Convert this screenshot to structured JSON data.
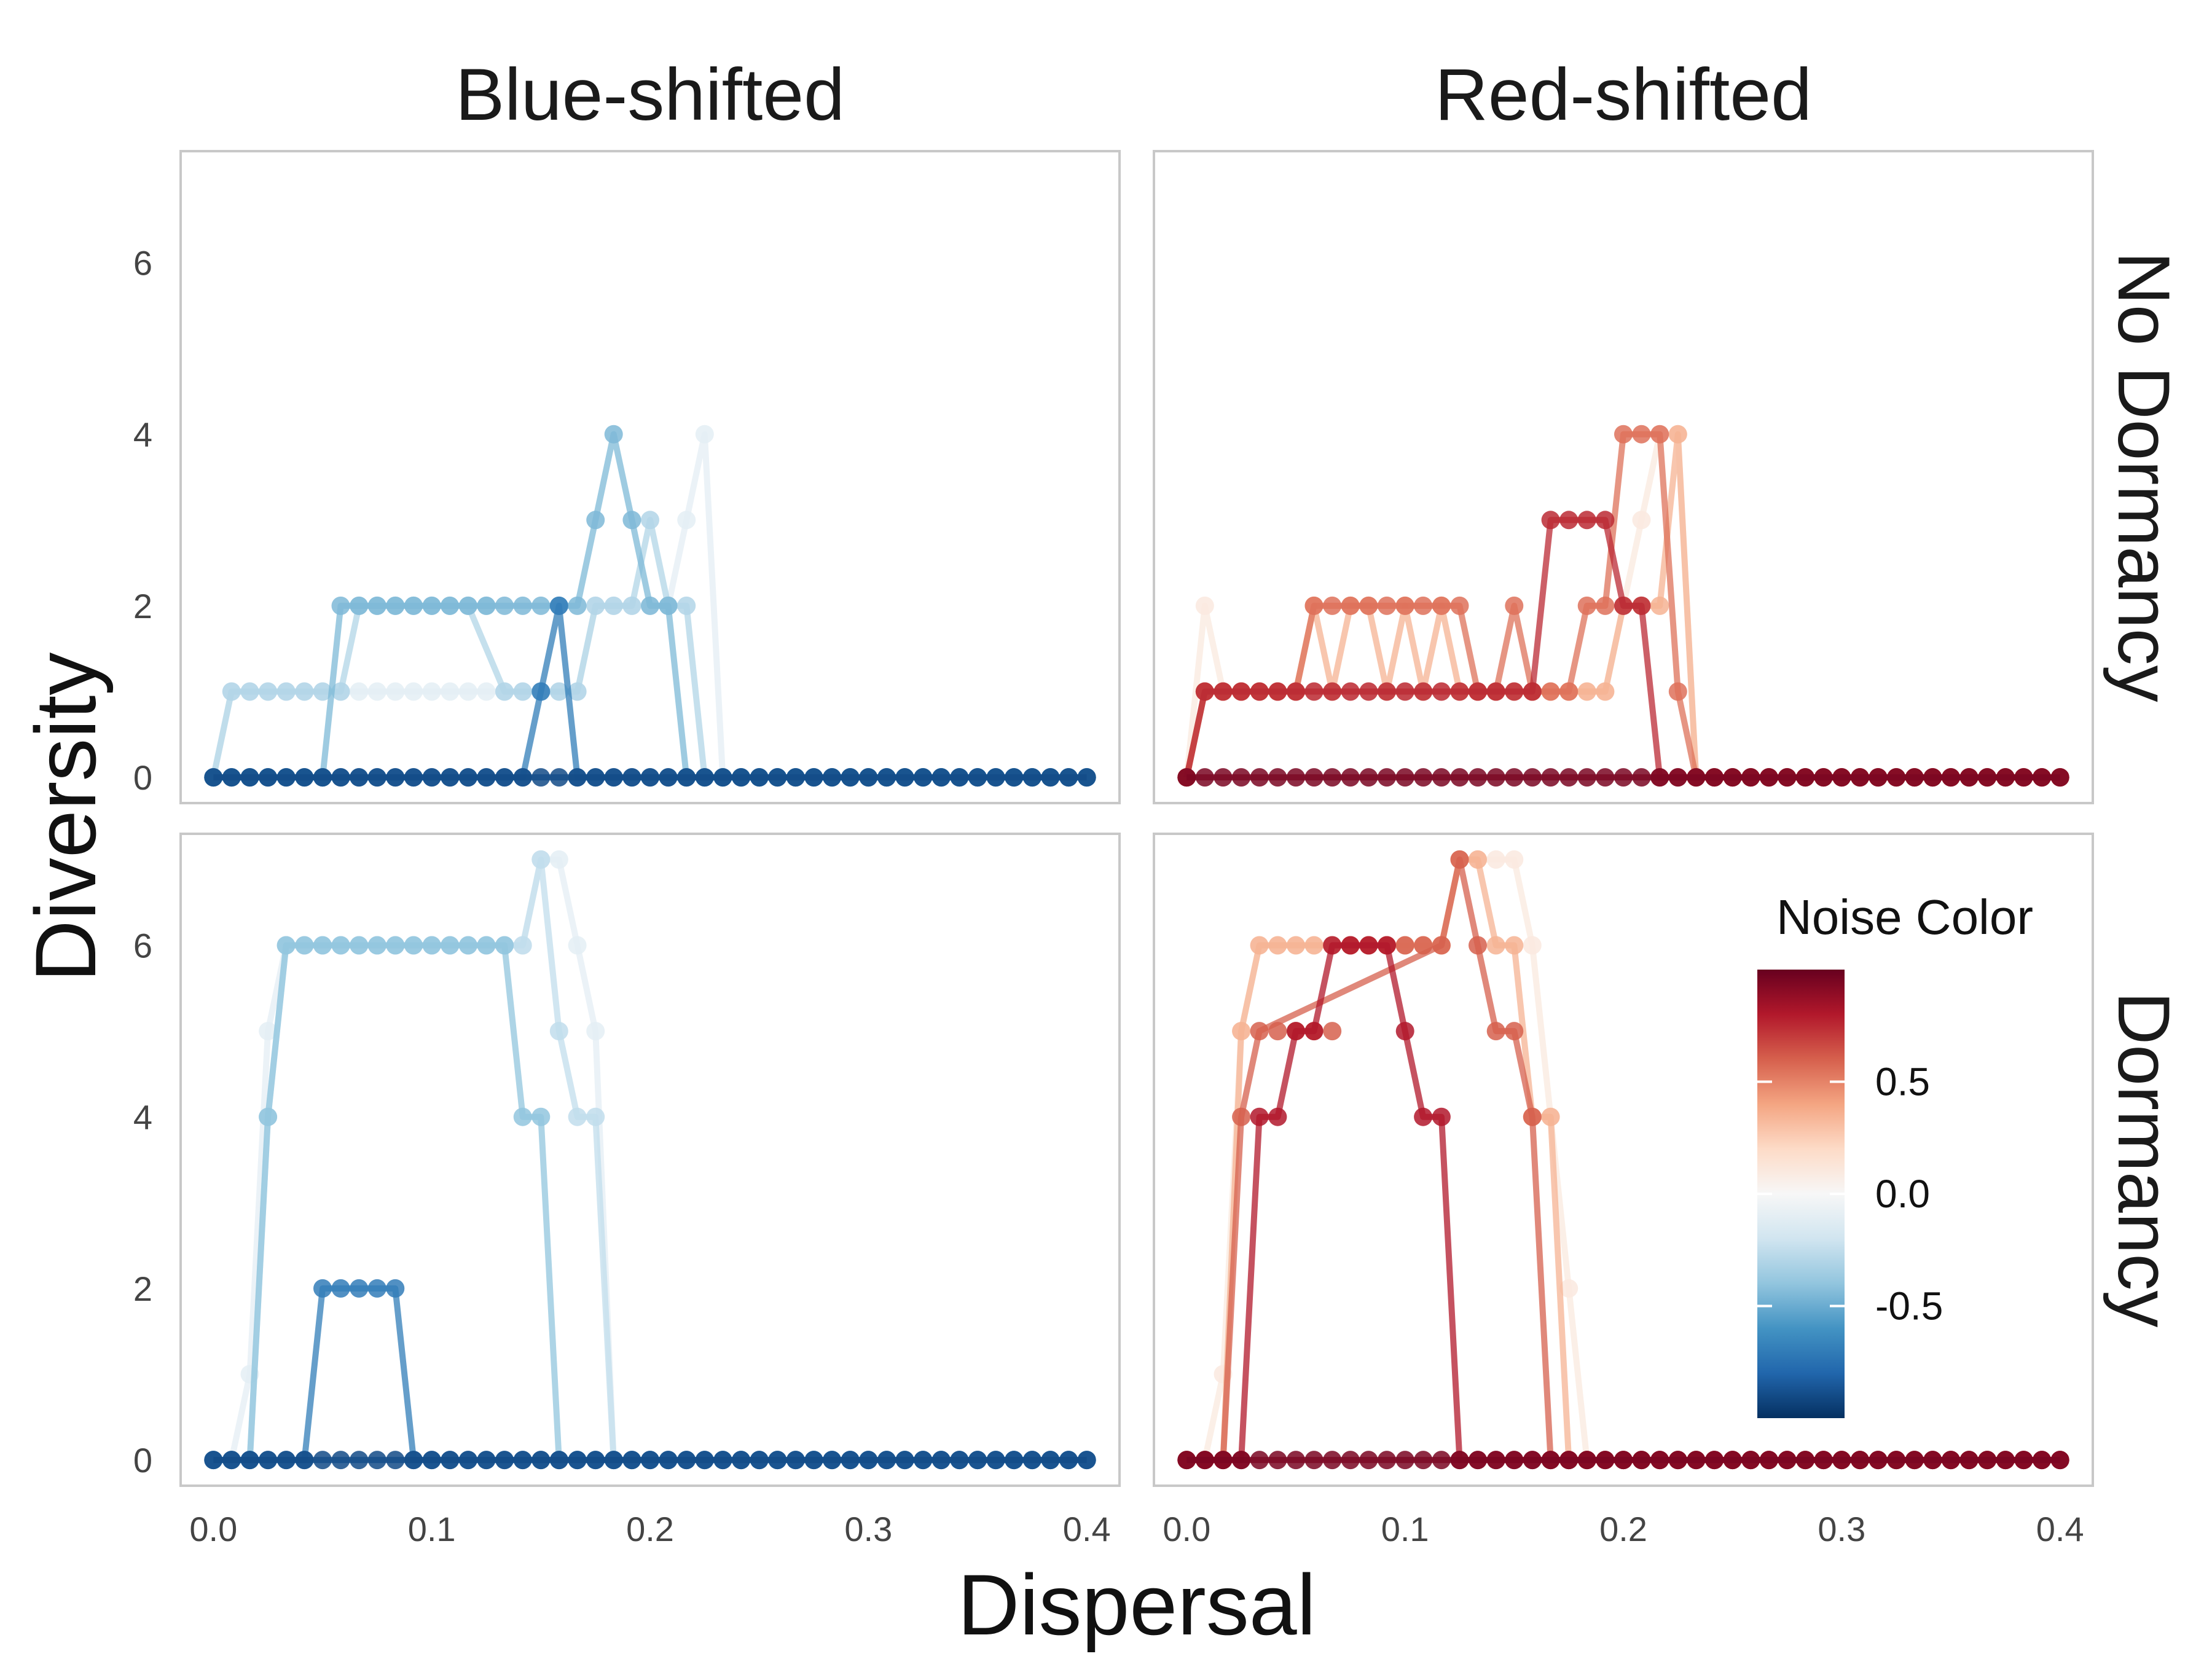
{
  "chart_data": {
    "type": "line",
    "xlabel": "Dispersal",
    "ylabel": "Diversity",
    "xlim": [
      -0.015,
      0.415
    ],
    "ylim": [
      -0.3,
      7.3
    ],
    "x_ticks": [
      "0.0",
      "0.1",
      "0.2",
      "0.3",
      "0.4"
    ],
    "x_tick_values": [
      0,
      0.1,
      0.2,
      0.3,
      0.4
    ],
    "y_ticks": [
      "0",
      "2",
      "4",
      "6"
    ],
    "y_tick_values": [
      0,
      2,
      4,
      6
    ],
    "grid": false,
    "column_labels": [
      "Blue-shifted",
      "Red-shifted"
    ],
    "row_labels": [
      "No Dormancy",
      "Dormancy"
    ],
    "legend": {
      "title": "Noise Color",
      "type": "colorbar",
      "placement": "inside bottom-right panel, right side",
      "range": [
        -1,
        1
      ],
      "ticks": [
        "0.5",
        "0.0",
        "-0.5"
      ],
      "tick_values": [
        0.5,
        0.0,
        -0.5
      ],
      "palette": [
        "#053061",
        "#2166ac",
        "#4393c3",
        "#92c5de",
        "#d1e5f0",
        "#f7f7f7",
        "#fddbc7",
        "#f4a582",
        "#d6604d",
        "#b2182b",
        "#67001f"
      ]
    },
    "panels": [
      {
        "column": "Blue-shifted",
        "row": "No Dormancy",
        "series": [
          {
            "noise_color": -0.1,
            "x": [
              0,
              0.0083,
              0.1667,
              0.175,
              0.1833,
              0.1917,
              0.2,
              0.2083,
              0.2167,
              0.225,
              0.2333,
              0.4
            ],
            "y": [
              0,
              1,
              1,
              2,
              2,
              2,
              2,
              2,
              3,
              4,
              0,
              0
            ]
          },
          {
            "noise_color": -0.3,
            "x": [
              0,
              0.0083,
              0.0583,
              0.0667,
              0.0917,
              0.1,
              0.1083,
              0.1167,
              0.1333,
              0.1417,
              0.1667,
              0.175,
              0.1833,
              0.1917,
              0.2,
              0.2083,
              0.2167,
              0.225,
              0.4
            ],
            "y": [
              0,
              1,
              1,
              2,
              2,
              2,
              2,
              2,
              1,
              1,
              1,
              2,
              2,
              2,
              3,
              2,
              2,
              0,
              0
            ]
          },
          {
            "noise_color": -0.45,
            "x": [
              0,
              0.0083,
              0.05,
              0.0583,
              0.1,
              0.1083,
              0.1167,
              0.125,
              0.1333,
              0.1417,
              0.15,
              0.1583,
              0.1667,
              0.175,
              0.1833,
              0.1917,
              0.2,
              0.2083,
              0.2167,
              0.4
            ],
            "y": [
              0,
              0,
              0,
              2,
              2,
              2,
              2,
              2,
              2,
              2,
              2,
              2,
              2,
              3,
              4,
              3,
              2,
              2,
              0,
              0
            ]
          },
          {
            "noise_color": -0.7,
            "x": [
              0,
              0.1417,
              0.15,
              0.1583,
              0.1667,
              0.4
            ],
            "y": [
              0,
              0,
              1,
              2,
              0,
              0
            ]
          },
          {
            "noise_color": -0.9,
            "x": [
              0,
              0.4
            ],
            "y": [
              0,
              0
            ]
          }
        ]
      },
      {
        "column": "Red-shifted",
        "row": "No Dormancy",
        "series": [
          {
            "noise_color": 0.1,
            "x": [
              0,
              0.0083,
              0.0167,
              0.025,
              0.1833,
              0.1917,
              0.2,
              0.2083,
              0.2167,
              0.225,
              0.2333,
              0.4
            ],
            "y": [
              0,
              2,
              1,
              1,
              1,
              1,
              2,
              3,
              4,
              4,
              0,
              0
            ]
          },
          {
            "noise_color": 0.35,
            "x": [
              0,
              0.0083,
              0.05,
              0.0583,
              0.0667,
              0.075,
              0.0833,
              0.0917,
              0.1,
              0.1083,
              0.1167,
              0.125,
              0.1333,
              0.1417,
              0.1917,
              0.2,
              0.2083,
              0.2167,
              0.225,
              0.2333,
              0.4
            ],
            "y": [
              0,
              1,
              1,
              2,
              1,
              2,
              2,
              1,
              2,
              1,
              2,
              1,
              1,
              1,
              1,
              2,
              2,
              2,
              4,
              0,
              0
            ]
          },
          {
            "noise_color": 0.55,
            "x": [
              0,
              0.0083,
              0.05,
              0.0583,
              0.0667,
              0.075,
              0.0833,
              0.0917,
              0.1,
              0.1083,
              0.1167,
              0.125,
              0.1333,
              0.1417,
              0.15,
              0.1583,
              0.1667,
              0.175,
              0.1833,
              0.1917,
              0.2,
              0.2083,
              0.2167,
              0.225,
              0.2333,
              0.4
            ],
            "y": [
              0,
              1,
              1,
              2,
              2,
              2,
              2,
              2,
              2,
              2,
              2,
              2,
              1,
              1,
              2,
              1,
              1,
              1,
              2,
              2,
              4,
              4,
              4,
              1,
              0,
              0
            ]
          },
          {
            "noise_color": 0.75,
            "x": [
              0,
              0.0083,
              0.1583,
              0.1667,
              0.175,
              0.1833,
              0.1917,
              0.2,
              0.2083,
              0.2167,
              0.4
            ],
            "y": [
              0,
              1,
              1,
              3,
              3,
              3,
              3,
              2,
              2,
              0,
              0
            ]
          },
          {
            "noise_color": 0.95,
            "x": [
              0,
              0.4
            ],
            "y": [
              0,
              0
            ]
          }
        ]
      },
      {
        "column": "Blue-shifted",
        "row": "Dormancy",
        "series": [
          {
            "noise_color": -0.1,
            "x": [
              0,
              0.0083,
              0.0167,
              0.025,
              0.0333,
              0.1417,
              0.15,
              0.1583,
              0.1667,
              0.175,
              0.1833,
              0.4
            ],
            "y": [
              0,
              0,
              1,
              5,
              6,
              6,
              7,
              7,
              6,
              5,
              0,
              0
            ]
          },
          {
            "noise_color": -0.25,
            "x": [
              0,
              0.0167,
              0.025,
              0.0333,
              0.1417,
              0.15,
              0.1583,
              0.1667,
              0.175,
              0.1833,
              0.4
            ],
            "y": [
              0,
              0,
              4,
              6,
              6,
              7,
              5,
              4,
              4,
              0,
              0
            ]
          },
          {
            "noise_color": -0.4,
            "x": [
              0,
              0.0167,
              0.025,
              0.0333,
              0.1333,
              0.1417,
              0.15,
              0.1583,
              0.4
            ],
            "y": [
              0,
              0,
              4,
              6,
              6,
              4,
              4,
              0,
              0
            ]
          },
          {
            "noise_color": -0.7,
            "x": [
              0,
              0.0417,
              0.05,
              0.0833,
              0.0917,
              0.4
            ],
            "y": [
              0,
              0,
              2,
              2,
              0,
              0
            ]
          },
          {
            "noise_color": -0.9,
            "x": [
              0,
              0.4
            ],
            "y": [
              0,
              0
            ]
          }
        ]
      },
      {
        "column": "Red-shifted",
        "row": "Dormancy",
        "series": [
          {
            "noise_color": 0.1,
            "x": [
              0,
              0.0083,
              0.0167,
              0.025,
              0.0333,
              0.1167,
              0.125,
              0.1333,
              0.1417,
              0.15,
              0.1583,
              0.1667,
              0.175,
              0.1833,
              0.4
            ],
            "y": [
              0,
              0,
              1,
              5,
              6,
              6,
              7,
              7,
              7,
              7,
              6,
              4,
              2,
              0,
              0
            ]
          },
          {
            "noise_color": 0.35,
            "x": [
              0,
              0.0167,
              0.025,
              0.0333,
              0.1167,
              0.125,
              0.1333,
              0.1417,
              0.15,
              0.1583,
              0.1667,
              0.175,
              0.4
            ],
            "y": [
              0,
              0,
              5,
              6,
              6,
              7,
              7,
              6,
              6,
              4,
              4,
              0,
              0
            ]
          },
          {
            "noise_color": 0.6,
            "x": [
              0,
              0.0167,
              0.025,
              0.0333,
              0.1167,
              0.125,
              0.1333,
              0.1417,
              0.15,
              0.1583,
              0.1667,
              0.4
            ],
            "y": [
              0,
              0,
              4,
              5,
              6,
              7,
              6,
              5,
              5,
              4,
              0,
              0
            ]
          },
          {
            "noise_color": 0.8,
            "x": [
              0,
              0.025,
              0.0333,
              0.0417,
              0.05,
              0.0583,
              0.0667,
              0.0917,
              0.1,
              0.1083,
              0.1167,
              0.125,
              0.4
            ],
            "y": [
              0,
              0,
              4,
              4,
              5,
              5,
              6,
              6,
              5,
              4,
              4,
              0,
              0
            ]
          },
          {
            "noise_color": 0.95,
            "x": [
              0,
              0.4
            ],
            "y": [
              0,
              0
            ]
          }
        ]
      }
    ]
  }
}
